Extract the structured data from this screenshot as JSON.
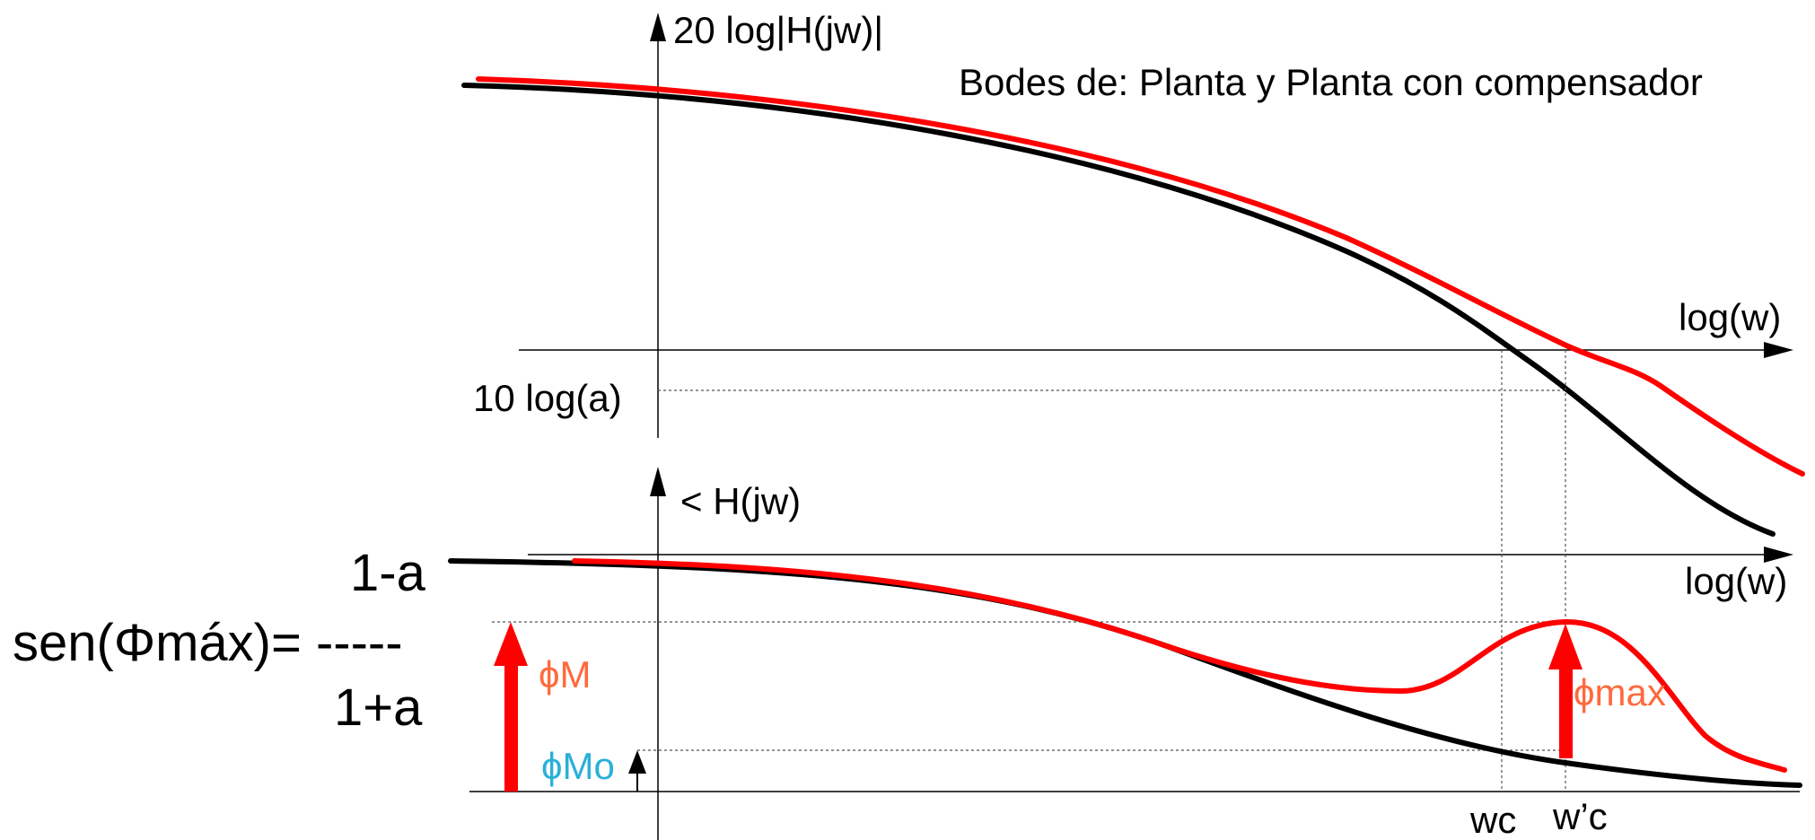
{
  "title": "Bodes de: Planta y Planta con compensador",
  "magnitude_plot": {
    "y_label": "20 log|H(jw)|",
    "x_label": "log(w)",
    "level_label": "10 log(a)"
  },
  "phase_plot": {
    "y_label": "< H(jw)",
    "x_label": "log(w)"
  },
  "frequency_markers": {
    "wc": "wc",
    "wc_prime": "w’c"
  },
  "phase_annotations": {
    "phi_M": "ϕM",
    "phi_Mo": "ϕMo",
    "phi_max": "ϕmax"
  },
  "formula": {
    "numerator": "1-a",
    "lhs": "sen(Φmáx)= -----",
    "denominator": "1+a"
  },
  "colors": {
    "plant": "#000000",
    "compensated": "#ff0000",
    "phi_label": "#ff6a3d",
    "phi_mo_label": "#2ab0d8",
    "axis": "#000000",
    "guide": "#555555"
  }
}
